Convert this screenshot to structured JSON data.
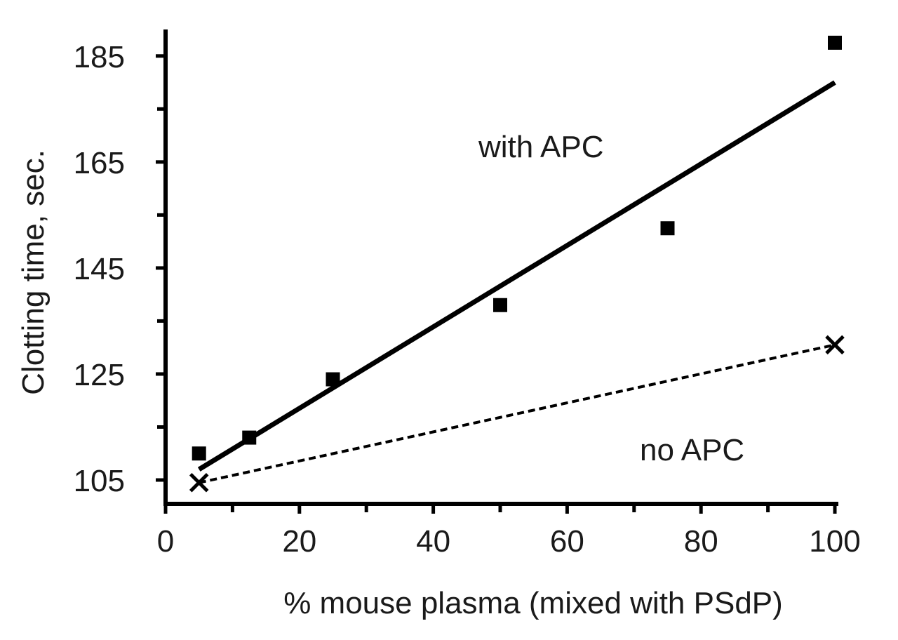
{
  "chart_data": {
    "type": "scatter",
    "xlabel": "% mouse plasma (mixed with PSdP)",
    "ylabel": "Clotting time, sec.",
    "xlim": [
      0,
      100
    ],
    "ylim": [
      100.5,
      190
    ],
    "x_ticks": [
      0,
      20,
      40,
      60,
      80,
      100
    ],
    "x_minor_ticks": [
      10,
      30,
      50,
      70,
      90
    ],
    "y_ticks": [
      105,
      125,
      145,
      165,
      185
    ],
    "y_minor_ticks": [
      115,
      135,
      155,
      175
    ],
    "grid": false,
    "series": [
      {
        "key": "with_apc",
        "marker": "square",
        "line_style": "solid",
        "points": [
          {
            "x": 5,
            "y": 110
          },
          {
            "x": 12.5,
            "y": 113
          },
          {
            "x": 25,
            "y": 124
          },
          {
            "x": 50,
            "y": 138
          },
          {
            "x": 75,
            "y": 152.5
          },
          {
            "x": 100,
            "y": 187.5
          }
        ],
        "fit": {
          "x": [
            5,
            100
          ],
          "y": [
            107,
            180
          ]
        }
      },
      {
        "key": "no_apc",
        "marker": "x",
        "line_style": "dashed",
        "points": [
          {
            "x": 5,
            "y": 104.5
          },
          {
            "x": 100,
            "y": 130.5
          }
        ],
        "fit": {
          "x": [
            5,
            100
          ],
          "y": [
            104.5,
            130.5
          ]
        }
      }
    ],
    "annotations": [
      {
        "text": "with APC",
        "series": "with_apc"
      },
      {
        "text": "no APC",
        "series": "no_apc"
      }
    ],
    "colors": {
      "ink": "#000000",
      "text": "#1a1a1a"
    }
  }
}
